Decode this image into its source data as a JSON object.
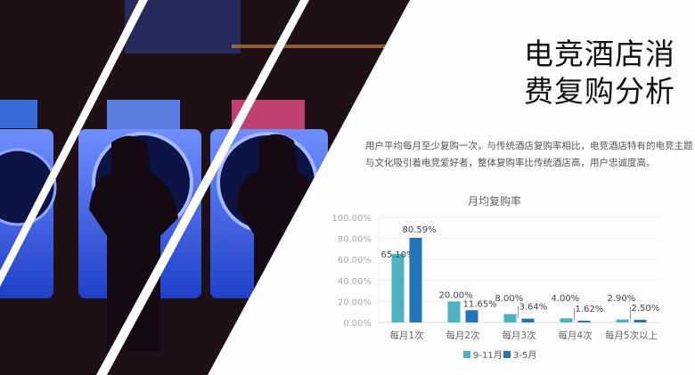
{
  "title": {
    "line1": "电竞酒店消",
    "line2": "费复购分析"
  },
  "description": "用户平均每月至少复购一次，与传统酒店复购率相比，电竞酒店特有的电竞主题与文化吸引着电竞爱好者，整体复购率比传统酒店高，用户忠诚度高。",
  "chart_data": {
    "type": "bar",
    "title": "月均复购率",
    "categories": [
      "每月1次",
      "每月2次",
      "每月3次",
      "每月4次",
      "每月5次以上"
    ],
    "series": [
      {
        "name": "9-11月",
        "color": "#4db3c0",
        "values": [
          65.1,
          20.0,
          8.0,
          4.0,
          2.9
        ],
        "labels": [
          "65.10%",
          "20.00%",
          "8.00%",
          "4.00%",
          "2.90%"
        ]
      },
      {
        "name": "3-5月",
        "color": "#2474b8",
        "values": [
          80.59,
          11.65,
          3.64,
          1.62,
          2.5
        ],
        "labels": [
          "80.59%",
          "11.65%",
          "3.64%",
          "1.62%",
          "2.50%"
        ]
      }
    ],
    "yticks": [
      "0.00%",
      "20.00%",
      "40.00%",
      "60.00%",
      "80.00%",
      "100.00%"
    ],
    "ylim": [
      0,
      100
    ],
    "grid": true,
    "legend": "bottom"
  }
}
